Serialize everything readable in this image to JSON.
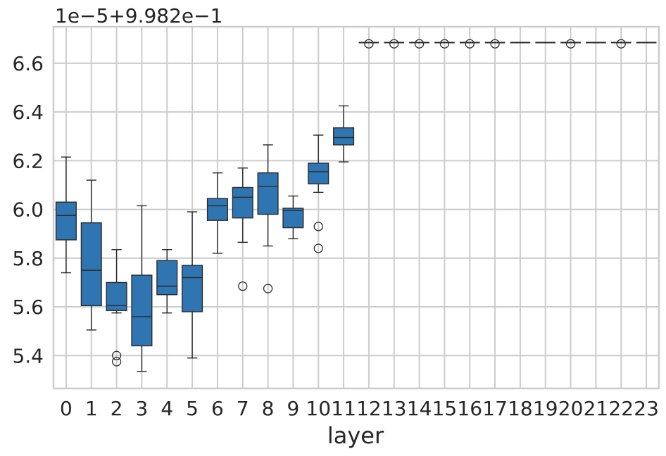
{
  "chart_data": {
    "type": "box",
    "xlabel": "layer",
    "ylabel": "",
    "offset_text": "1e−5+9.982e−1",
    "ylim": [
      5.265,
      6.75
    ],
    "yticks": [
      5.4,
      5.6,
      5.8,
      6.0,
      6.2,
      6.4,
      6.6
    ],
    "ytick_labels": [
      "5.4",
      "5.6",
      "5.8",
      "6.0",
      "6.2",
      "6.4",
      "6.6"
    ],
    "grid": true,
    "colors": {
      "box": "#2f75b1",
      "line": "#2b2b2b",
      "grid": "#cccccc",
      "spine": "#cccccc"
    },
    "categories": [
      "0",
      "1",
      "2",
      "3",
      "4",
      "5",
      "6",
      "7",
      "8",
      "9",
      "10",
      "11",
      "12",
      "13",
      "14",
      "15",
      "16",
      "17",
      "18",
      "19",
      "20",
      "21",
      "22",
      "23"
    ],
    "boxes": [
      {
        "whislo": 5.74,
        "q1": 5.875,
        "med": 5.975,
        "q3": 6.03,
        "whishi": 6.215,
        "fliers": []
      },
      {
        "whislo": 5.505,
        "q1": 5.605,
        "med": 5.75,
        "q3": 5.945,
        "whishi": 6.12,
        "fliers": []
      },
      {
        "whislo": 5.575,
        "q1": 5.585,
        "med": 5.605,
        "q3": 5.7,
        "whishi": 5.835,
        "fliers": [
          5.4,
          5.375
        ]
      },
      {
        "whislo": 5.335,
        "q1": 5.44,
        "med": 5.56,
        "q3": 5.73,
        "whishi": 6.015,
        "fliers": []
      },
      {
        "whislo": 5.575,
        "q1": 5.65,
        "med": 5.685,
        "q3": 5.79,
        "whishi": 5.835,
        "fliers": []
      },
      {
        "whislo": 5.39,
        "q1": 5.58,
        "med": 5.72,
        "q3": 5.77,
        "whishi": 5.99,
        "fliers": []
      },
      {
        "whislo": 5.82,
        "q1": 5.955,
        "med": 6.015,
        "q3": 6.045,
        "whishi": 6.15,
        "fliers": []
      },
      {
        "whislo": 5.865,
        "q1": 5.965,
        "med": 6.05,
        "q3": 6.09,
        "whishi": 6.17,
        "fliers": [
          5.685
        ]
      },
      {
        "whislo": 5.85,
        "q1": 5.98,
        "med": 6.095,
        "q3": 6.15,
        "whishi": 6.265,
        "fliers": [
          5.675
        ]
      },
      {
        "whislo": 5.88,
        "q1": 5.925,
        "med": 5.995,
        "q3": 6.005,
        "whishi": 6.055,
        "fliers": []
      },
      {
        "whislo": 6.07,
        "q1": 6.105,
        "med": 6.155,
        "q3": 6.19,
        "whishi": 6.305,
        "fliers": [
          5.93,
          5.84
        ]
      },
      {
        "whislo": 6.195,
        "q1": 6.265,
        "med": 6.295,
        "q3": 6.335,
        "whishi": 6.425,
        "fliers": []
      },
      {
        "whislo": 6.685,
        "q1": 6.685,
        "med": 6.685,
        "q3": 6.685,
        "whishi": 6.685,
        "fliers": [
          6.68
        ]
      },
      {
        "whislo": 6.685,
        "q1": 6.685,
        "med": 6.685,
        "q3": 6.685,
        "whishi": 6.685,
        "fliers": [
          6.68
        ]
      },
      {
        "whislo": 6.685,
        "q1": 6.685,
        "med": 6.685,
        "q3": 6.685,
        "whishi": 6.685,
        "fliers": [
          6.68
        ]
      },
      {
        "whislo": 6.685,
        "q1": 6.685,
        "med": 6.685,
        "q3": 6.685,
        "whishi": 6.685,
        "fliers": [
          6.68
        ]
      },
      {
        "whislo": 6.685,
        "q1": 6.685,
        "med": 6.685,
        "q3": 6.685,
        "whishi": 6.685,
        "fliers": [
          6.68
        ]
      },
      {
        "whislo": 6.685,
        "q1": 6.685,
        "med": 6.685,
        "q3": 6.685,
        "whishi": 6.685,
        "fliers": [
          6.68
        ]
      },
      {
        "whislo": 6.685,
        "q1": 6.685,
        "med": 6.685,
        "q3": 6.685,
        "whishi": 6.685,
        "fliers": []
      },
      {
        "whislo": 6.685,
        "q1": 6.685,
        "med": 6.685,
        "q3": 6.685,
        "whishi": 6.685,
        "fliers": []
      },
      {
        "whislo": 6.685,
        "q1": 6.685,
        "med": 6.685,
        "q3": 6.685,
        "whishi": 6.685,
        "fliers": [
          6.68
        ]
      },
      {
        "whislo": 6.685,
        "q1": 6.685,
        "med": 6.685,
        "q3": 6.685,
        "whishi": 6.685,
        "fliers": []
      },
      {
        "whislo": 6.685,
        "q1": 6.685,
        "med": 6.685,
        "q3": 6.685,
        "whishi": 6.685,
        "fliers": [
          6.68
        ]
      },
      {
        "whislo": 6.685,
        "q1": 6.685,
        "med": 6.685,
        "q3": 6.685,
        "whishi": 6.685,
        "fliers": []
      }
    ]
  }
}
